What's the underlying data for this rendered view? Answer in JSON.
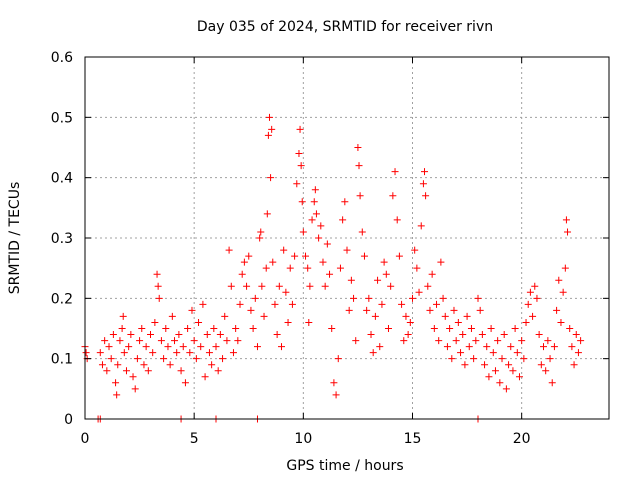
{
  "chart_data": {
    "type": "scatter",
    "title": "Day 035 of 2024, SRMTID for receiver rivn",
    "xlabel": "GPS time / hours",
    "ylabel": "SRMTID / TECUs",
    "xlim": [
      0,
      24
    ],
    "ylim": [
      0,
      0.6
    ],
    "xticks": [
      0,
      5,
      10,
      15,
      20
    ],
    "xtick_labels": [
      "0",
      "5",
      "10",
      "15",
      "20"
    ],
    "yticks": [
      0,
      0.1,
      0.2,
      0.3,
      0.4,
      0.5,
      0.6
    ],
    "ytick_labels": [
      "0",
      "0.1",
      "0.2",
      "0.3",
      "0.4",
      "0.5",
      "0.6"
    ],
    "grid": true,
    "marker": "+",
    "color": "#ff0000",
    "series": [
      {
        "name": "rivn",
        "points": [
          [
            0.0,
            0.12
          ],
          [
            0.05,
            0.11
          ],
          [
            0.1,
            0.1
          ],
          [
            0.7,
            0.11
          ],
          [
            0.8,
            0.09
          ],
          [
            0.9,
            0.13
          ],
          [
            1.0,
            0.08
          ],
          [
            1.1,
            0.12
          ],
          [
            1.2,
            0.1
          ],
          [
            1.3,
            0.14
          ],
          [
            1.4,
            0.06
          ],
          [
            1.45,
            0.04
          ],
          [
            1.5,
            0.09
          ],
          [
            1.6,
            0.13
          ],
          [
            1.7,
            0.15
          ],
          [
            1.75,
            0.17
          ],
          [
            1.8,
            0.11
          ],
          [
            1.9,
            0.08
          ],
          [
            2.0,
            0.12
          ],
          [
            2.1,
            0.14
          ],
          [
            2.2,
            0.07
          ],
          [
            2.3,
            0.05
          ],
          [
            2.4,
            0.1
          ],
          [
            2.5,
            0.13
          ],
          [
            2.6,
            0.15
          ],
          [
            2.7,
            0.09
          ],
          [
            2.8,
            0.12
          ],
          [
            2.9,
            0.08
          ],
          [
            3.0,
            0.14
          ],
          [
            3.1,
            0.11
          ],
          [
            3.2,
            0.16
          ],
          [
            3.3,
            0.24
          ],
          [
            3.35,
            0.22
          ],
          [
            3.4,
            0.2
          ],
          [
            3.5,
            0.13
          ],
          [
            3.6,
            0.1
          ],
          [
            3.7,
            0.15
          ],
          [
            3.8,
            0.12
          ],
          [
            3.9,
            0.09
          ],
          [
            4.0,
            0.17
          ],
          [
            4.1,
            0.13
          ],
          [
            4.2,
            0.11
          ],
          [
            4.3,
            0.14
          ],
          [
            4.4,
            0.08
          ],
          [
            4.5,
            0.12
          ],
          [
            4.6,
            0.06
          ],
          [
            4.7,
            0.15
          ],
          [
            4.8,
            0.11
          ],
          [
            4.9,
            0.18
          ],
          [
            5.0,
            0.13
          ],
          [
            5.1,
            0.1
          ],
          [
            5.2,
            0.16
          ],
          [
            5.3,
            0.12
          ],
          [
            5.4,
            0.19
          ],
          [
            5.5,
            0.07
          ],
          [
            5.6,
            0.14
          ],
          [
            5.7,
            0.11
          ],
          [
            5.8,
            0.09
          ],
          [
            5.9,
            0.15
          ],
          [
            6.0,
            0.12
          ],
          [
            6.1,
            0.08
          ],
          [
            6.2,
            0.14
          ],
          [
            6.3,
            0.1
          ],
          [
            6.4,
            0.17
          ],
          [
            6.5,
            0.13
          ],
          [
            6.6,
            0.28
          ],
          [
            6.7,
            0.22
          ],
          [
            6.8,
            0.11
          ],
          [
            6.9,
            0.15
          ],
          [
            7.0,
            0.13
          ],
          [
            7.1,
            0.19
          ],
          [
            7.2,
            0.24
          ],
          [
            7.3,
            0.26
          ],
          [
            7.4,
            0.22
          ],
          [
            7.5,
            0.27
          ],
          [
            7.6,
            0.18
          ],
          [
            7.7,
            0.15
          ],
          [
            7.8,
            0.2
          ],
          [
            7.9,
            0.12
          ],
          [
            8.0,
            0.3
          ],
          [
            8.05,
            0.31
          ],
          [
            8.1,
            0.22
          ],
          [
            8.2,
            0.17
          ],
          [
            8.3,
            0.25
          ],
          [
            8.35,
            0.34
          ],
          [
            8.4,
            0.47
          ],
          [
            8.45,
            0.5
          ],
          [
            8.5,
            0.4
          ],
          [
            8.55,
            0.48
          ],
          [
            8.6,
            0.26
          ],
          [
            8.7,
            0.19
          ],
          [
            8.8,
            0.14
          ],
          [
            8.9,
            0.22
          ],
          [
            9.0,
            0.12
          ],
          [
            9.1,
            0.28
          ],
          [
            9.2,
            0.21
          ],
          [
            9.3,
            0.16
          ],
          [
            9.4,
            0.25
          ],
          [
            9.5,
            0.19
          ],
          [
            9.6,
            0.27
          ],
          [
            9.7,
            0.39
          ],
          [
            9.8,
            0.44
          ],
          [
            9.85,
            0.48
          ],
          [
            9.9,
            0.42
          ],
          [
            9.95,
            0.36
          ],
          [
            10.0,
            0.31
          ],
          [
            10.1,
            0.27
          ],
          [
            10.2,
            0.25
          ],
          [
            10.25,
            0.16
          ],
          [
            10.3,
            0.22
          ],
          [
            10.4,
            0.33
          ],
          [
            10.5,
            0.36
          ],
          [
            10.55,
            0.38
          ],
          [
            10.6,
            0.34
          ],
          [
            10.7,
            0.3
          ],
          [
            10.8,
            0.32
          ],
          [
            10.9,
            0.26
          ],
          [
            11.0,
            0.22
          ],
          [
            11.1,
            0.29
          ],
          [
            11.2,
            0.24
          ],
          [
            11.3,
            0.15
          ],
          [
            11.4,
            0.06
          ],
          [
            11.5,
            0.04
          ],
          [
            11.6,
            0.1
          ],
          [
            11.7,
            0.25
          ],
          [
            11.8,
            0.33
          ],
          [
            11.9,
            0.36
          ],
          [
            12.0,
            0.28
          ],
          [
            12.1,
            0.18
          ],
          [
            12.2,
            0.23
          ],
          [
            12.3,
            0.2
          ],
          [
            12.4,
            0.13
          ],
          [
            12.5,
            0.45
          ],
          [
            12.55,
            0.42
          ],
          [
            12.6,
            0.37
          ],
          [
            12.7,
            0.31
          ],
          [
            12.8,
            0.27
          ],
          [
            12.9,
            0.18
          ],
          [
            13.0,
            0.2
          ],
          [
            13.1,
            0.14
          ],
          [
            13.2,
            0.11
          ],
          [
            13.3,
            0.17
          ],
          [
            13.4,
            0.23
          ],
          [
            13.5,
            0.12
          ],
          [
            13.6,
            0.19
          ],
          [
            13.7,
            0.26
          ],
          [
            13.8,
            0.24
          ],
          [
            13.9,
            0.15
          ],
          [
            14.0,
            0.22
          ],
          [
            14.1,
            0.37
          ],
          [
            14.2,
            0.41
          ],
          [
            14.3,
            0.33
          ],
          [
            14.4,
            0.27
          ],
          [
            14.5,
            0.19
          ],
          [
            14.6,
            0.13
          ],
          [
            14.7,
            0.17
          ],
          [
            14.8,
            0.14
          ],
          [
            14.9,
            0.16
          ],
          [
            15.0,
            0.2
          ],
          [
            15.1,
            0.28
          ],
          [
            15.2,
            0.25
          ],
          [
            15.3,
            0.21
          ],
          [
            15.4,
            0.32
          ],
          [
            15.5,
            0.39
          ],
          [
            15.55,
            0.41
          ],
          [
            15.6,
            0.37
          ],
          [
            15.7,
            0.22
          ],
          [
            15.8,
            0.18
          ],
          [
            15.9,
            0.24
          ],
          [
            16.0,
            0.15
          ],
          [
            16.1,
            0.19
          ],
          [
            16.2,
            0.13
          ],
          [
            16.3,
            0.26
          ],
          [
            16.4,
            0.2
          ],
          [
            16.5,
            0.17
          ],
          [
            16.6,
            0.12
          ],
          [
            16.7,
            0.15
          ],
          [
            16.8,
            0.1
          ],
          [
            16.9,
            0.18
          ],
          [
            17.0,
            0.13
          ],
          [
            17.1,
            0.16
          ],
          [
            17.2,
            0.11
          ],
          [
            17.3,
            0.14
          ],
          [
            17.4,
            0.09
          ],
          [
            17.5,
            0.17
          ],
          [
            17.6,
            0.12
          ],
          [
            17.7,
            0.15
          ],
          [
            17.8,
            0.1
          ],
          [
            17.9,
            0.13
          ],
          [
            18.0,
            0.2
          ],
          [
            18.1,
            0.18
          ],
          [
            18.2,
            0.14
          ],
          [
            18.3,
            0.09
          ],
          [
            18.4,
            0.12
          ],
          [
            18.5,
            0.07
          ],
          [
            18.6,
            0.15
          ],
          [
            18.7,
            0.11
          ],
          [
            18.8,
            0.08
          ],
          [
            18.9,
            0.13
          ],
          [
            19.0,
            0.06
          ],
          [
            19.1,
            0.1
          ],
          [
            19.2,
            0.14
          ],
          [
            19.3,
            0.05
          ],
          [
            19.4,
            0.09
          ],
          [
            19.5,
            0.12
          ],
          [
            19.6,
            0.08
          ],
          [
            19.7,
            0.15
          ],
          [
            19.8,
            0.11
          ],
          [
            19.9,
            0.07
          ],
          [
            20.0,
            0.13
          ],
          [
            20.1,
            0.1
          ],
          [
            20.2,
            0.16
          ],
          [
            20.3,
            0.19
          ],
          [
            20.4,
            0.21
          ],
          [
            20.5,
            0.17
          ],
          [
            20.6,
            0.22
          ],
          [
            20.7,
            0.2
          ],
          [
            20.8,
            0.14
          ],
          [
            20.9,
            0.09
          ],
          [
            21.0,
            0.12
          ],
          [
            21.1,
            0.08
          ],
          [
            21.2,
            0.13
          ],
          [
            21.3,
            0.1
          ],
          [
            21.4,
            0.06
          ],
          [
            21.5,
            0.12
          ],
          [
            21.6,
            0.18
          ],
          [
            21.7,
            0.23
          ],
          [
            21.8,
            0.16
          ],
          [
            21.9,
            0.21
          ],
          [
            22.0,
            0.25
          ],
          [
            22.05,
            0.33
          ],
          [
            22.1,
            0.31
          ],
          [
            22.2,
            0.15
          ],
          [
            22.3,
            0.12
          ],
          [
            22.4,
            0.09
          ],
          [
            22.5,
            0.14
          ],
          [
            22.6,
            0.11
          ],
          [
            22.7,
            0.13
          ],
          [
            0.6,
            0.0
          ],
          [
            0.7,
            0.0
          ],
          [
            4.4,
            0.0
          ],
          [
            6.0,
            0.0
          ],
          [
            7.9,
            0.0
          ],
          [
            18.0,
            0.0
          ]
        ]
      }
    ]
  }
}
